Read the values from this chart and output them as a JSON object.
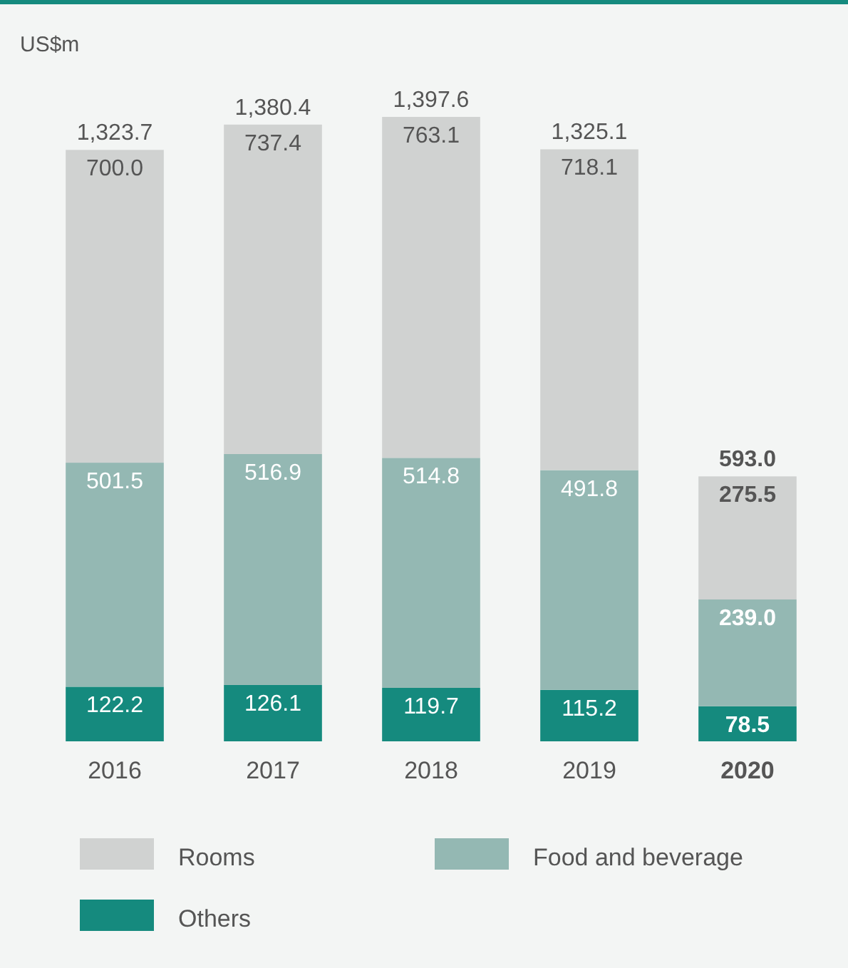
{
  "chart_data": {
    "type": "bar",
    "ylabel": "US$m",
    "categories": [
      "2016",
      "2017",
      "2018",
      "2019",
      "2020"
    ],
    "stacked": true,
    "legend": "bottom",
    "series": [
      {
        "name": "Others",
        "color": "#158a7e",
        "values": [
          122.2,
          126.1,
          119.7,
          115.2,
          78.5
        ],
        "value_labels": [
          "122.2",
          "126.1",
          "119.7",
          "115.2",
          "78.5"
        ]
      },
      {
        "name": "Food and beverage",
        "color": "#94b8b3",
        "values": [
          501.5,
          516.9,
          514.8,
          491.8,
          239.0
        ],
        "value_labels": [
          "501.5",
          "516.9",
          "514.8",
          "491.8",
          "239.0"
        ]
      },
      {
        "name": "Rooms",
        "color": "#d0d2d1",
        "values": [
          700.0,
          737.4,
          763.1,
          718.1,
          275.5
        ],
        "value_labels": [
          "700.0",
          "737.4",
          "763.1",
          "718.1",
          "275.5"
        ]
      }
    ],
    "totals": [
      "1,323.7",
      "1,380.4",
      "1,397.6",
      "1,325.1",
      "593.0"
    ]
  }
}
